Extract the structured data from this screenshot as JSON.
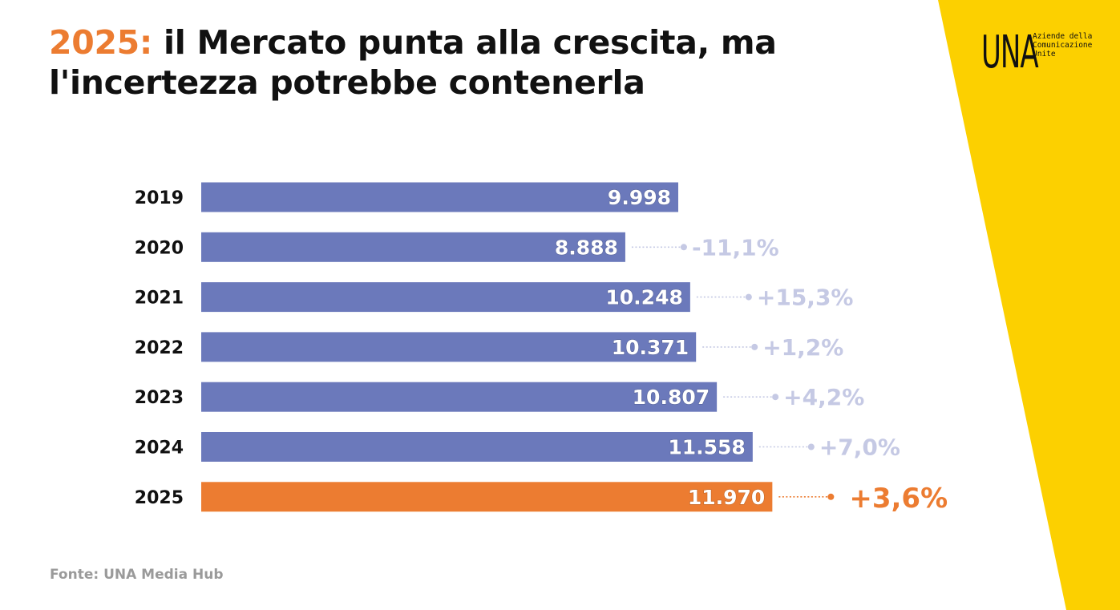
{
  "title": {
    "highlight": "2025:",
    "text": "il Mercato punta alla crescita, ma l'incertezza potrebbe contenerla"
  },
  "logo": {
    "mark": "UNA",
    "tagline": [
      "Aziende della",
      "Comunicazione",
      "Unite"
    ]
  },
  "source": "Fonte: UNA Media Hub",
  "colors": {
    "bar": "#6b79bb",
    "highlight": "#ec7c31",
    "pct": "#c5c9e4",
    "band": "#fcd000",
    "text": "#111111"
  },
  "chart_data": {
    "type": "bar",
    "orientation": "horizontal",
    "title": "2025: il Mercato punta alla crescita, ma l'incertezza potrebbe contenerla",
    "categories": [
      "2019",
      "2020",
      "2021",
      "2022",
      "2023",
      "2024",
      "2025"
    ],
    "values": [
      9998,
      8888,
      10248,
      10371,
      10807,
      11558,
      11970
    ],
    "value_labels": [
      "9.998",
      "8.888",
      "10.248",
      "10.371",
      "10.807",
      "11.558",
      "11.970"
    ],
    "changes": [
      "",
      "-11,1%",
      "+15,3%",
      "+1,2%",
      "+4,2%",
      "+7,0%",
      "+3,6%"
    ],
    "highlight_index": 6,
    "xlabel": "",
    "ylabel": "",
    "grid": false
  }
}
